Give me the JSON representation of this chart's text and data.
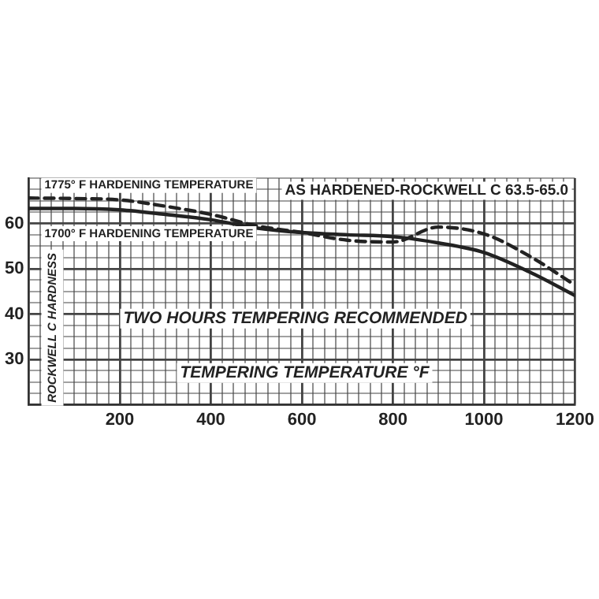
{
  "chart_data": {
    "type": "line",
    "xlabel": "TEMPERING TEMPERATURE °F",
    "ylabel": "ROCKWELL C HARDNESS",
    "annotations": [
      "AS HARDENED-ROCKWELL C 63.5-65.0",
      "TWO HOURS TEMPERING RECOMMENDED"
    ],
    "x": [
      0,
      100,
      200,
      300,
      400,
      500,
      600,
      700,
      800,
      900,
      1000,
      1100,
      1200
    ],
    "series": [
      {
        "name": "1775° F HARDENING TEMPERATURE",
        "color": "#222222",
        "line_style": "dashed",
        "values": [
          65.6,
          65.5,
          65.2,
          63.8,
          62,
          59.5,
          58,
          56.3,
          55.9,
          59.2,
          57.7,
          52.8,
          46.4
        ]
      },
      {
        "name": "1700° F HARDENING TEMPERATURE",
        "color": "#222222",
        "line_style": "solid",
        "values": [
          63.3,
          63.3,
          63,
          62,
          60.8,
          59,
          58,
          57.5,
          57.1,
          55.7,
          53.6,
          49.3,
          44.1
        ]
      }
    ],
    "xlim": [
      0,
      1200
    ],
    "ylim": [
      20,
      70
    ],
    "xticks": [
      {
        "value": 0,
        "label": null
      },
      {
        "value": 25,
        "label": null
      },
      {
        "value": 50,
        "label": null
      },
      {
        "value": 75,
        "label": null
      },
      {
        "value": 100,
        "label": null
      },
      {
        "value": 125,
        "label": null
      },
      {
        "value": 150,
        "label": null
      },
      {
        "value": 175,
        "label": null
      },
      200,
      {
        "value": 225,
        "label": null
      },
      {
        "value": 250,
        "label": null
      },
      {
        "value": 275,
        "label": null
      },
      {
        "value": 300,
        "label": null
      },
      {
        "value": 325,
        "label": null
      },
      {
        "value": 350,
        "label": null
      },
      {
        "value": 375,
        "label": null
      },
      400,
      {
        "value": 425,
        "label": null
      },
      {
        "value": 450,
        "label": null
      },
      {
        "value": 475,
        "label": null
      },
      {
        "value": 500,
        "label": null
      },
      {
        "value": 525,
        "label": null
      },
      {
        "value": 550,
        "label": null
      },
      {
        "value": 575,
        "label": null
      },
      600,
      {
        "value": 625,
        "label": null
      },
      {
        "value": 650,
        "label": null
      },
      {
        "value": 675,
        "label": null
      },
      {
        "value": 700,
        "label": null
      },
      {
        "value": 725,
        "label": null
      },
      {
        "value": 750,
        "label": null
      },
      {
        "value": 775,
        "label": null
      },
      800,
      {
        "value": 825,
        "label": null
      },
      {
        "value": 850,
        "label": null
      },
      {
        "value": 875,
        "label": null
      },
      {
        "value": 900,
        "label": null
      },
      {
        "value": 925,
        "label": null
      },
      {
        "value": 950,
        "label": null
      },
      {
        "value": 975,
        "label": null
      },
      1000,
      {
        "value": 1025,
        "label": null
      },
      {
        "value": 1050,
        "label": null
      },
      {
        "value": 1075,
        "label": null
      },
      {
        "value": 1100,
        "label": null
      },
      {
        "value": 1125,
        "label": null
      },
      {
        "value": 1150,
        "label": null
      },
      {
        "value": 1175,
        "label": null
      },
      1200
    ],
    "yticks": [
      {
        "value": 20,
        "label": null
      },
      {
        "value": 22.5,
        "label": null
      },
      {
        "value": 25,
        "label": null
      },
      {
        "value": 27.5,
        "label": null
      },
      30,
      {
        "value": 32.5,
        "label": null
      },
      {
        "value": 35,
        "label": null
      },
      {
        "value": 37.5,
        "label": null
      },
      40,
      {
        "value": 42.5,
        "label": null
      },
      {
        "value": 45,
        "label": null
      },
      {
        "value": 47.5,
        "label": null
      },
      50,
      {
        "value": 52.5,
        "label": null
      },
      {
        "value": 55,
        "label": null
      },
      {
        "value": 57.5,
        "label": null
      },
      60,
      {
        "value": 62.5,
        "label": null
      },
      {
        "value": 65,
        "label": null
      },
      {
        "value": 67.5,
        "label": null
      },
      {
        "value": 70,
        "label": null
      }
    ],
    "grid": true,
    "legend": false,
    "marker": "none"
  }
}
